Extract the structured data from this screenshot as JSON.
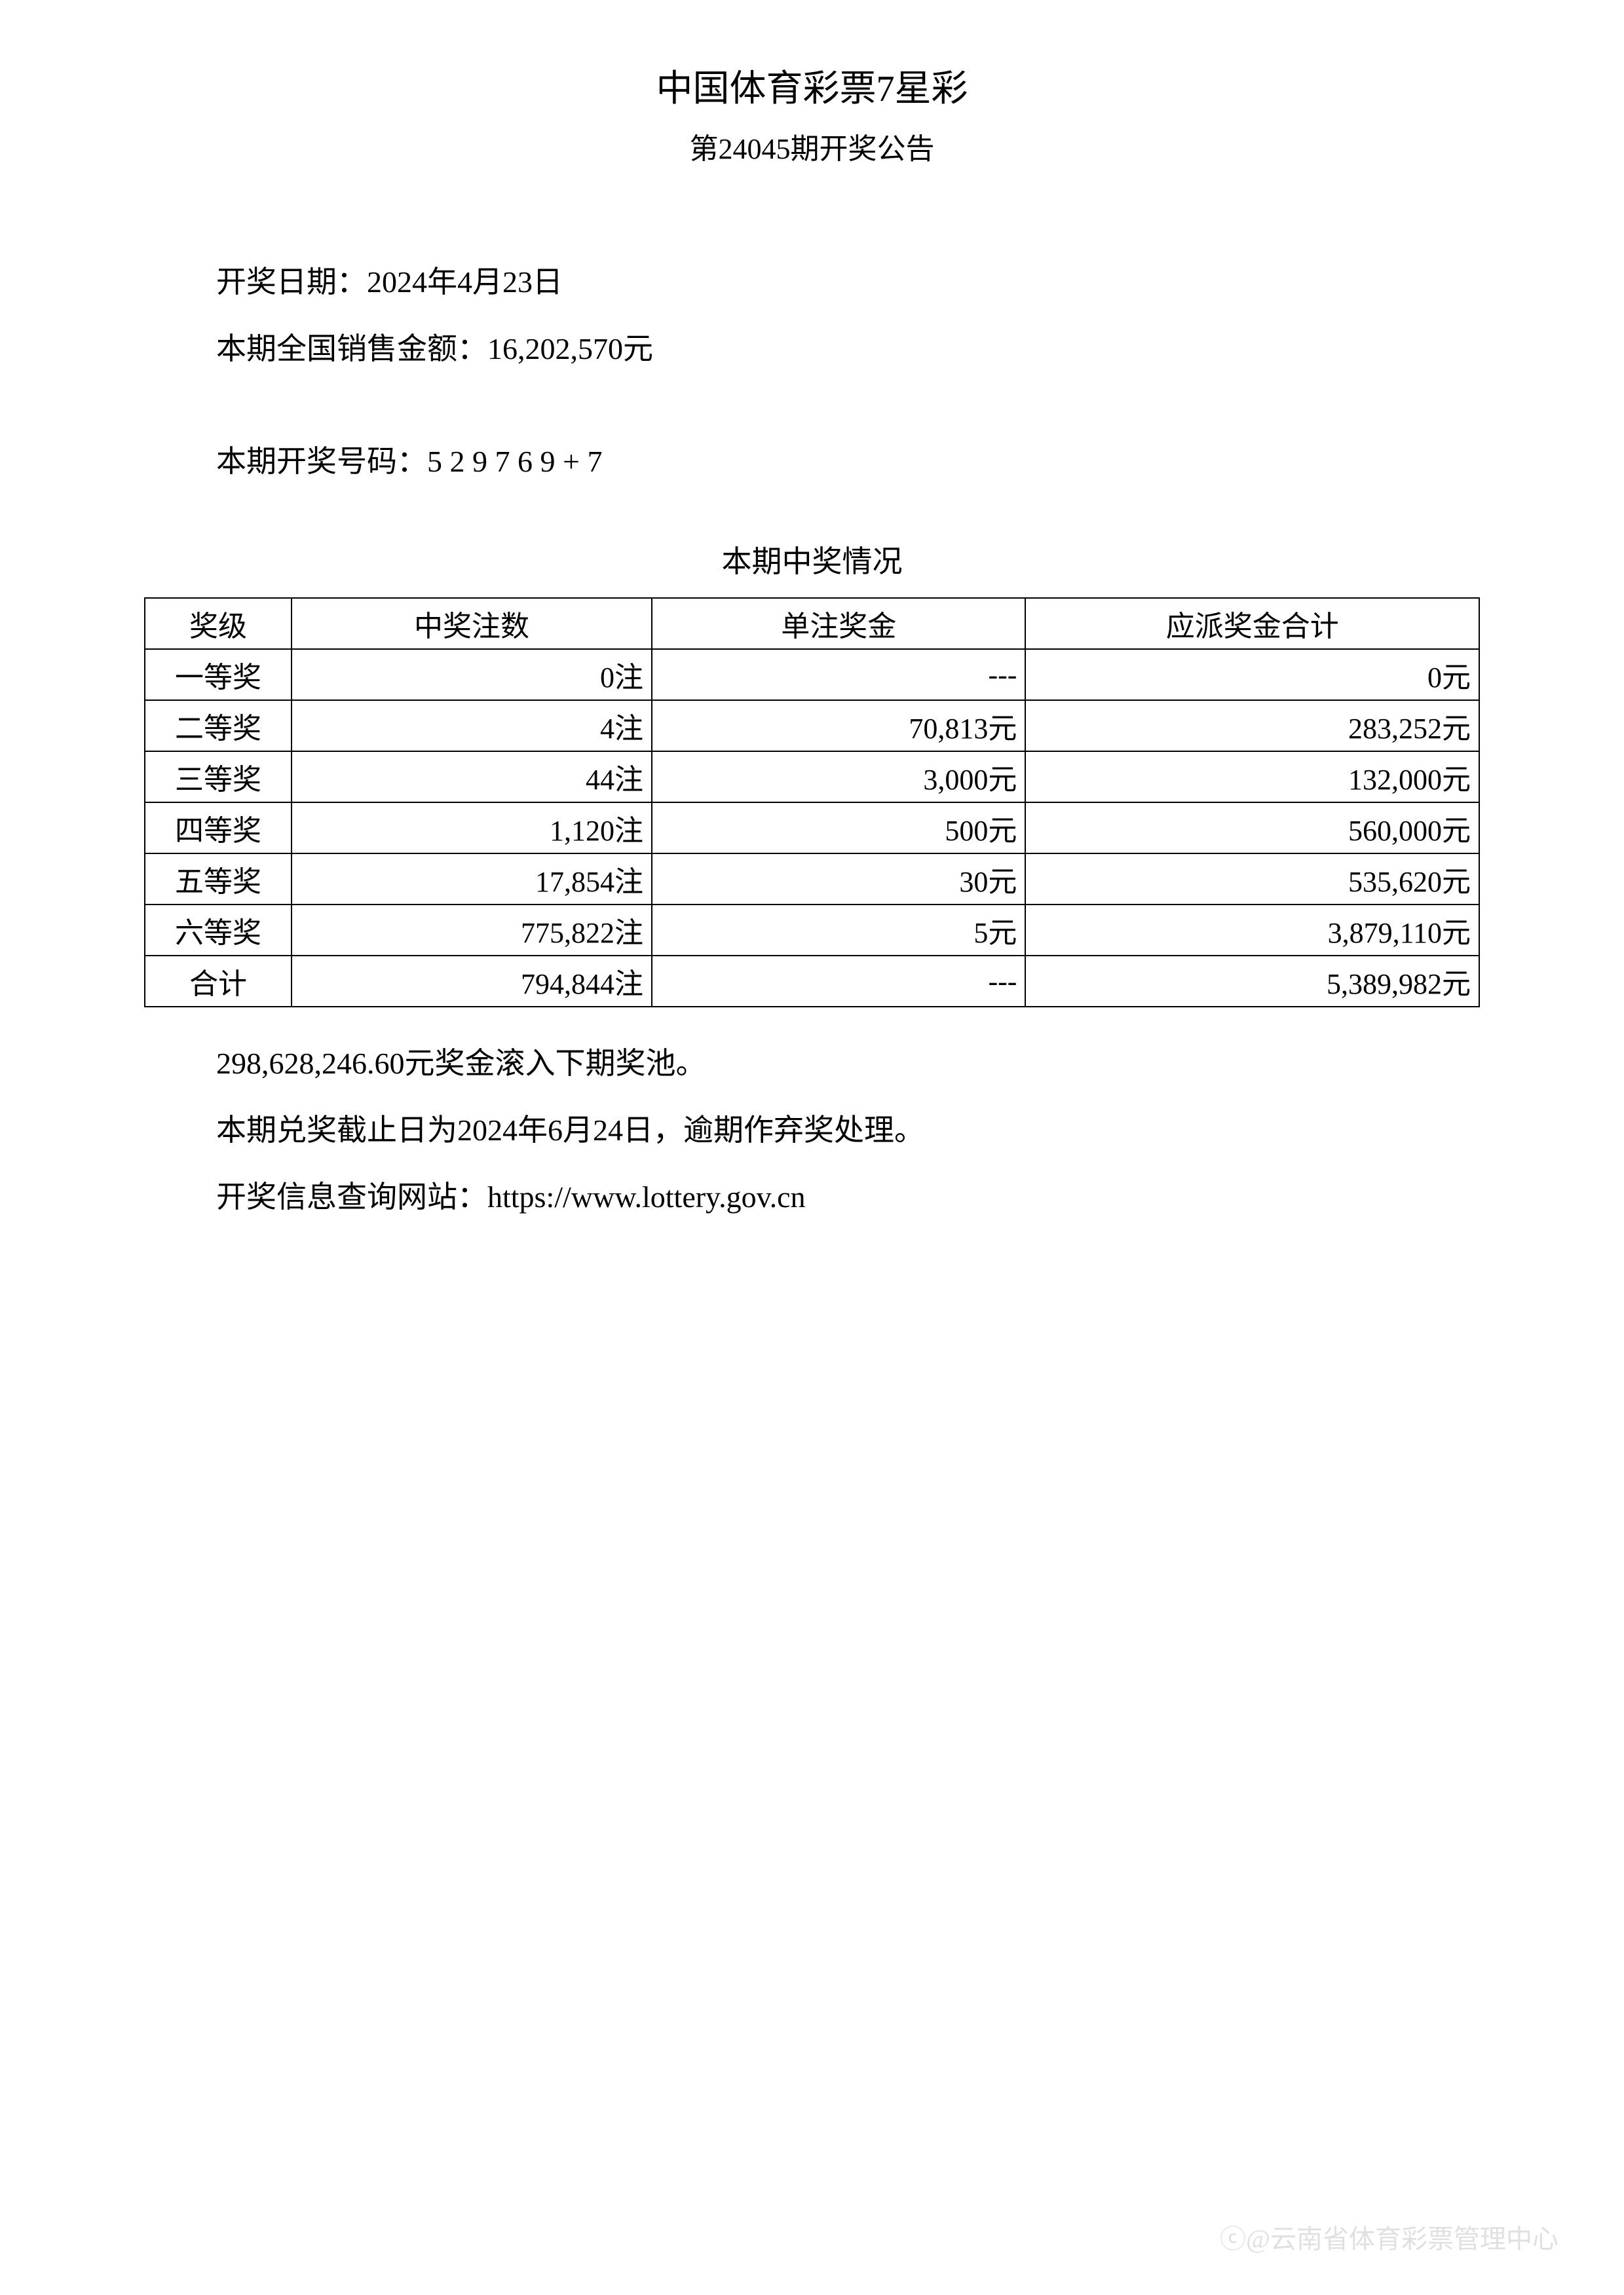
{
  "header": {
    "title": "中国体育彩票7星彩",
    "subtitle": "第24045期开奖公告"
  },
  "info": {
    "draw_date_label": "开奖日期：",
    "draw_date": "2024年4月23日",
    "sales_label": "本期全国销售金额：",
    "sales_amount": "16,202,570元",
    "numbers_label": "本期开奖号码：",
    "numbers": "5 2 9 7 6 9 + 7"
  },
  "table": {
    "title": "本期中奖情况",
    "columns": [
      "奖级",
      "中奖注数",
      "单注奖金",
      "应派奖金合计"
    ],
    "rows": [
      {
        "level": "一等奖",
        "count": "0注",
        "unit_prize": "---",
        "total": "0元"
      },
      {
        "level": "二等奖",
        "count": "4注",
        "unit_prize": "70,813元",
        "total": "283,252元"
      },
      {
        "level": "三等奖",
        "count": "44注",
        "unit_prize": "3,000元",
        "total": "132,000元"
      },
      {
        "level": "四等奖",
        "count": "1,120注",
        "unit_prize": "500元",
        "total": "560,000元"
      },
      {
        "level": "五等奖",
        "count": "17,854注",
        "unit_prize": "30元",
        "total": "535,620元"
      },
      {
        "level": "六等奖",
        "count": "775,822注",
        "unit_prize": "5元",
        "total": "3,879,110元"
      },
      {
        "level": "合计",
        "count": "794,844注",
        "unit_prize": "---",
        "total": "5,389,982元"
      }
    ]
  },
  "footer": {
    "rollover": "298,628,246.60元奖金滚入下期奖池。",
    "deadline": "本期兑奖截止日为2024年6月24日，逾期作弃奖处理。",
    "website_label": "开奖信息查询网站：",
    "website": "https://www.lottery.gov.cn"
  },
  "watermark": "@云南省体育彩票管理中心",
  "styling": {
    "background_color": "#ffffff",
    "text_color": "#000000",
    "border_color": "#000000",
    "watermark_color": "#cccccc",
    "title_fontsize": 56,
    "subtitle_fontsize": 44,
    "body_fontsize": 46,
    "table_fontsize": 44
  }
}
